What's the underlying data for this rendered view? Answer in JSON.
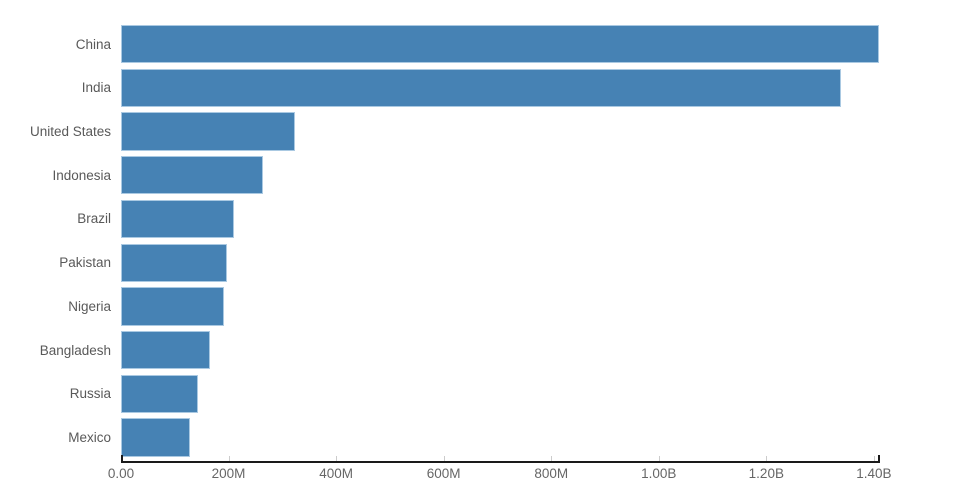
{
  "chart_data": {
    "type": "bar",
    "orientation": "horizontal",
    "title": "",
    "xlabel": "",
    "ylabel": "",
    "grid": false,
    "legend": false,
    "categories": [
      "China",
      "India",
      "United States",
      "Indonesia",
      "Brazil",
      "Pakistan",
      "Nigeria",
      "Bangladesh",
      "Russia",
      "Mexico"
    ],
    "values": [
      1409517397,
      1339180127,
      324459463,
      263991379,
      209288278,
      197015955,
      190886311,
      164669751,
      143989754,
      129163276
    ],
    "xlim": [
      0,
      1409517397
    ],
    "x_ticks": [
      {
        "value": 0,
        "label": "0.00"
      },
      {
        "value": 200000000,
        "label": "200M"
      },
      {
        "value": 400000000,
        "label": "400M"
      },
      {
        "value": 600000000,
        "label": "600M"
      },
      {
        "value": 800000000,
        "label": "800M"
      },
      {
        "value": 1000000000,
        "label": "1.00B"
      },
      {
        "value": 1200000000,
        "label": "1.20B"
      },
      {
        "value": 1400000000,
        "label": "1.40B"
      }
    ],
    "colors": {
      "bar_fill": "#4682b4",
      "bar_edge": "#aac9e2",
      "axis_line": "#1a1a1a",
      "tick_mark": "#cccccc",
      "category_label": "#595959",
      "tick_label": "#666666"
    }
  }
}
